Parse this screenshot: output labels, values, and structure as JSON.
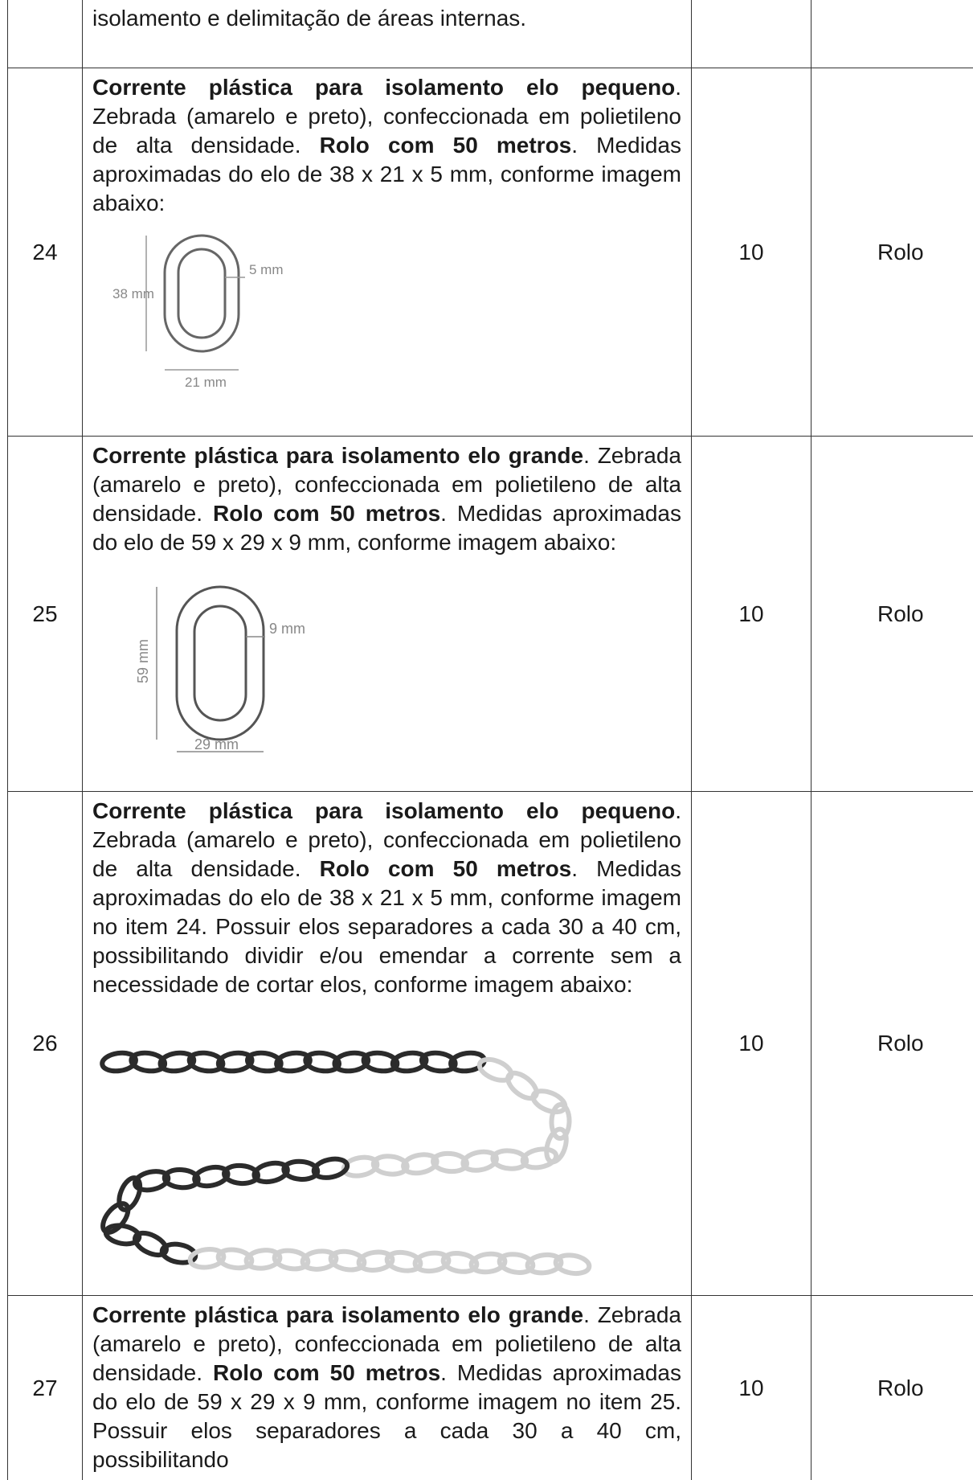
{
  "table": {
    "rows": [
      {
        "description": [
          {
            "text": "isolamento e delimitação de áreas internas."
          }
        ]
      },
      {
        "item": "24",
        "description": [
          {
            "text": "Corrente plástica para isolamento elo pequeno",
            "bold": true
          },
          {
            "text": ". Zebrada (amarelo e preto), confeccionada em polietileno de alta densidade. "
          },
          {
            "text": "Rolo com 50 metros",
            "bold": true
          },
          {
            "text": ". Medidas aproximadas do elo de 38 x 21 x 5 mm, conforme imagem abaixo:"
          }
        ],
        "figure_labels": [
          "38 mm",
          "5 mm",
          "21 mm"
        ],
        "quantity": 10,
        "unit": "Rolo"
      },
      {
        "item": "25",
        "description": [
          {
            "text": "Corrente plástica para isolamento elo grande",
            "bold": true
          },
          {
            "text": ". Zebrada (amarelo e preto), confeccionada em polietileno de alta densidade. "
          },
          {
            "text": "Rolo com 50 metros",
            "bold": true
          },
          {
            "text": ". Medidas aproximadas do elo de 59 x 29 x 9 mm, conforme imagem abaixo:"
          }
        ],
        "figure_labels": [
          "59 mm",
          "9 mm",
          "29 mm"
        ],
        "quantity": 10,
        "unit": "Rolo"
      },
      {
        "item": "26",
        "description": [
          {
            "text": "Corrente plástica para isolamento elo pequeno",
            "bold": true
          },
          {
            "text": ". Zebrada (amarelo e preto), confeccionada em polietileno de alta densidade. "
          },
          {
            "text": "Rolo com 50 metros",
            "bold": true
          },
          {
            "text": ". Medidas aproximadas do elo de 38 x 21 x 5 mm, conforme imagem no item 24. Possuir elos separadores a cada 30 a 40 cm, possibilitando dividir e/ou emendar a corrente sem a necessidade de cortar elos, conforme imagem abaixo:"
          }
        ],
        "quantity": 10,
        "unit": "Rolo"
      },
      {
        "item": "27",
        "description": [
          {
            "text": "Corrente plástica para isolamento elo grande",
            "bold": true
          },
          {
            "text": ". Zebrada (amarelo e preto), confeccionada em polietileno de alta densidade. "
          },
          {
            "text": "Rolo com 50 metros",
            "bold": true
          },
          {
            "text": ". Medidas aproximadas do elo de 59 x 29 x 9 mm, conforme imagem no item 25. Possuir elos separadores a cada 30 a 40 cm, possibilitando"
          }
        ],
        "quantity": 10,
        "unit": "Rolo"
      }
    ]
  }
}
